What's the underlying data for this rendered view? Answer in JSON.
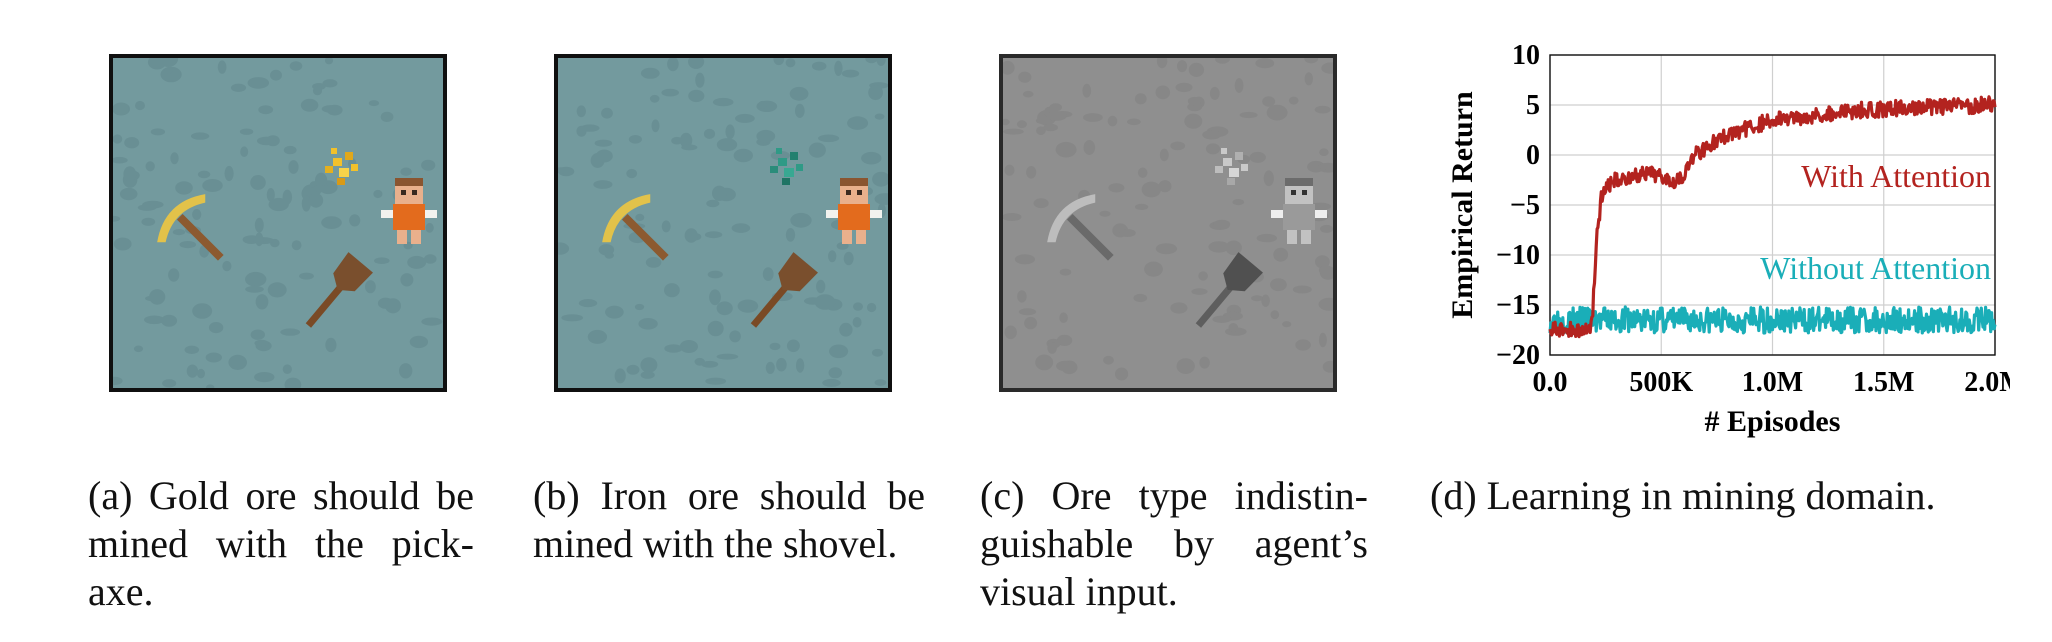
{
  "figure": {
    "panels": [
      {
        "id": "a",
        "variant": "color",
        "ore": "gold",
        "ore_color": "#e2b31f"
      },
      {
        "id": "b",
        "variant": "color",
        "ore": "iron",
        "ore_color": "#2f9a86"
      },
      {
        "id": "c",
        "variant": "grayscale",
        "ore": "unknown",
        "ore_color": "#bdbdbd"
      }
    ],
    "captions": {
      "a": [
        "(a) Gold ore should be",
        "mined with the pick-",
        "axe."
      ],
      "b": [
        "(b) Iron ore should be",
        "mined with the shovel."
      ],
      "c": [
        "(c) Ore type indistin-",
        "guishable by agent’s",
        "visual input."
      ],
      "d": [
        "(d) Learning in mining domain."
      ]
    }
  },
  "chart_data": {
    "type": "line",
    "xlabel": "# Episodes",
    "ylabel": "Empirical Return",
    "xlim": [
      0,
      2000000
    ],
    "ylim": [
      -20,
      10
    ],
    "x_ticks": [
      0,
      500000,
      1000000,
      1500000,
      2000000
    ],
    "x_tick_labels": [
      "0.0",
      "500K",
      "1.0M",
      "1.5M",
      "2.0M"
    ],
    "y_ticks": [
      10,
      5,
      0,
      -5,
      -10,
      -15,
      -20
    ],
    "y_tick_labels": [
      "10",
      "5",
      "0",
      "−5",
      "−10",
      "−15",
      "−20"
    ],
    "grid": true,
    "series": [
      {
        "name": "With Attention",
        "color": "#b3231f",
        "x": [
          0,
          100000,
          170000,
          190000,
          210000,
          230000,
          260000,
          300000,
          400000,
          500000,
          560000,
          600000,
          650000,
          700000,
          800000,
          900000,
          1000000,
          1200000,
          1400000,
          1600000,
          1800000,
          2000000
        ],
        "y": [
          -17.5,
          -17.5,
          -17.5,
          -16.5,
          -8,
          -4.5,
          -3,
          -2.5,
          -2,
          -2,
          -2.5,
          -2,
          0,
          0.8,
          2,
          2.8,
          3.5,
          4,
          4.5,
          4.7,
          4.8,
          5.1
        ],
        "noise": 0.8
      },
      {
        "name": "Without Attention",
        "color": "#1aaeb8",
        "x": [
          0,
          500000,
          1000000,
          1500000,
          2000000
        ],
        "y": [
          -16.5,
          -16.5,
          -16.5,
          -16.5,
          -16.5
        ],
        "noise": 1.3
      }
    ]
  }
}
